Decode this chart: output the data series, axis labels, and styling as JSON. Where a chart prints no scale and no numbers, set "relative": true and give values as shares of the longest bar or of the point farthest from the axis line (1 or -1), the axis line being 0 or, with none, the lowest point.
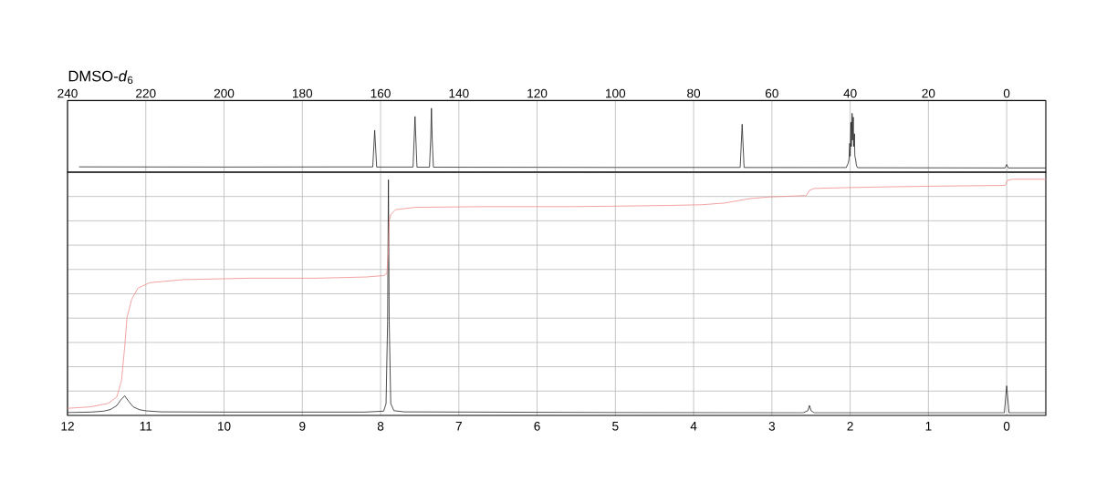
{
  "chart_data": [
    {
      "type": "line",
      "title": "DMSO-*d*$_{6}$",
      "relative": true,
      "color": "#222222",
      "x": [
        237,
        200,
        170,
        162.0,
        161.5,
        161.0,
        151.7,
        151.2,
        150.7,
        147.5,
        147.2,
        147.0,
        146.8,
        146.5,
        120,
        100,
        68.1,
        67.6,
        67.1,
        41.0,
        40.5,
        40.3,
        40.1,
        40.0,
        39.8,
        39.7,
        39.5,
        39.4,
        39.2,
        39.1,
        38.9,
        38.8,
        38.6,
        38.4,
        38.1,
        20,
        0.4,
        0,
        -0.4,
        -10
      ],
      "values": [
        0.083,
        0.08,
        0.082,
        0.082,
        0.656,
        0.08,
        0.08,
        0.871,
        0.078,
        0.078,
        0.5,
        1.0,
        0.5,
        0.078,
        0.076,
        0.074,
        0.074,
        0.749,
        0.073,
        0.072,
        0.14,
        0.2,
        0.45,
        0.25,
        0.78,
        0.4,
        0.92,
        0.5,
        0.86,
        0.4,
        0.6,
        0.25,
        0.2,
        0.1,
        0.07,
        0.068,
        0.066,
        0.12,
        0.066,
        0.066
      ],
      "xlim": [
        240,
        -10
      ],
      "xticks": [
        240,
        220,
        200,
        180,
        160,
        140,
        120,
        100,
        80,
        60,
        40,
        20,
        0
      ],
      "grid": "x"
    },
    {
      "type": "line",
      "relative": true,
      "series": [
        {
          "color": "#222222",
          "x": [
            12,
            11.7,
            11.54,
            11.45,
            11.37,
            11.32,
            11.27,
            11.22,
            11.16,
            11.08,
            10.99,
            10.8,
            10.0,
            8.2,
            7.96,
            7.93,
            7.91,
            7.9,
            7.89,
            7.87,
            7.83,
            7.7,
            5,
            2.6,
            2.54,
            2.52,
            2.5,
            2.46,
            0.03,
            0,
            -0.03,
            -0.5
          ],
          "values": [
            0.012,
            0.014,
            0.018,
            0.025,
            0.042,
            0.065,
            0.083,
            0.06,
            0.036,
            0.024,
            0.019,
            0.015,
            0.014,
            0.014,
            0.018,
            0.05,
            0.4,
            0.998,
            0.4,
            0.05,
            0.02,
            0.015,
            0.012,
            0.011,
            0.02,
            0.042,
            0.02,
            0.011,
            0.011,
            0.125,
            0.011,
            0.011
          ]
        },
        {
          "color": "#f08c8c",
          "x": [
            12,
            11.71,
            11.48,
            11.37,
            11.31,
            11.27,
            11.24,
            11.18,
            11.1,
            10.95,
            10.52,
            9.68,
            8.83,
            8.19,
            7.96,
            7.92,
            7.9,
            7.89,
            7.87,
            7.81,
            7.56,
            6.71,
            5.61,
            5.03,
            4.32,
            3.9,
            3.61,
            3.28,
            3.03,
            2.56,
            2.52,
            2.46,
            2.11,
            1.48,
            0.85,
            0.02,
            -0.01,
            -0.07,
            -0.5
          ],
          "values": [
            0.03,
            0.036,
            0.051,
            0.078,
            0.148,
            0.288,
            0.415,
            0.492,
            0.539,
            0.562,
            0.575,
            0.581,
            0.581,
            0.586,
            0.592,
            0.6,
            0.696,
            0.823,
            0.85,
            0.871,
            0.881,
            0.884,
            0.884,
            0.886,
            0.889,
            0.892,
            0.899,
            0.918,
            0.925,
            0.931,
            0.953,
            0.961,
            0.964,
            0.968,
            0.971,
            0.974,
            0.995,
            1.0,
            1.0
          ]
        }
      ],
      "xlim": [
        12,
        -0.5
      ],
      "xticks": [
        12,
        11,
        10,
        9,
        8,
        7,
        6,
        5,
        4,
        3,
        2,
        1,
        0
      ],
      "grid": true
    }
  ]
}
